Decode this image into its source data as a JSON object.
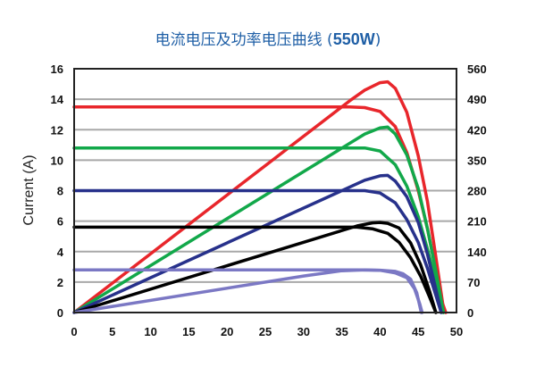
{
  "chart_data": {
    "type": "line",
    "title_main": "电流电压及功率电压曲线 (",
    "title_bold": "550W",
    "title_close": ")",
    "ylabel": "Current (A)",
    "xlim": [
      0,
      50
    ],
    "ylim_left": [
      0,
      16
    ],
    "ylim_right": [
      0,
      560
    ],
    "x_ticks": [
      "0",
      "5",
      "10",
      "15",
      "20",
      "25",
      "30",
      "35",
      "40",
      "45",
      "50"
    ],
    "y_left_ticks": [
      "0",
      "2",
      "4",
      "6",
      "8",
      "10",
      "12",
      "14",
      "16"
    ],
    "y_right_ticks": [
      "0",
      "70",
      "140",
      "210",
      "280",
      "350",
      "420",
      "490",
      "560"
    ],
    "grid": "horizontal",
    "series": [
      {
        "color": "#e8262b",
        "iv": [
          [
            0,
            13.5
          ],
          [
            36,
            13.5
          ],
          [
            38,
            13.45
          ],
          [
            40,
            13.2
          ],
          [
            42,
            12.2
          ],
          [
            43.5,
            10.5
          ],
          [
            45,
            8.0
          ],
          [
            46.2,
            5.5
          ],
          [
            47.2,
            3.0
          ],
          [
            48.3,
            0.3
          ],
          [
            48.6,
            0
          ]
        ],
        "pv": [
          [
            0,
            0
          ],
          [
            36,
            486
          ],
          [
            38,
            511
          ],
          [
            40,
            528
          ],
          [
            41,
            530
          ],
          [
            42,
            515
          ],
          [
            43.5,
            460
          ],
          [
            45,
            360
          ],
          [
            46.2,
            255
          ],
          [
            47.2,
            140
          ],
          [
            48.2,
            20
          ],
          [
            48.6,
            0
          ]
        ]
      },
      {
        "color": "#12a84a",
        "iv": [
          [
            0,
            10.8
          ],
          [
            38,
            10.8
          ],
          [
            40,
            10.6
          ],
          [
            42,
            9.7
          ],
          [
            43.5,
            8.3
          ],
          [
            45,
            6.3
          ],
          [
            46.3,
            4.0
          ],
          [
            47.3,
            2.0
          ],
          [
            48.3,
            0
          ]
        ],
        "pv": [
          [
            0,
            0
          ],
          [
            38,
            410
          ],
          [
            40,
            424
          ],
          [
            41,
            426
          ],
          [
            42,
            410
          ],
          [
            43.5,
            362
          ],
          [
            45,
            285
          ],
          [
            46.3,
            185
          ],
          [
            47.3,
            95
          ],
          [
            48.3,
            0
          ]
        ]
      },
      {
        "color": "#27318b",
        "iv": [
          [
            0,
            8.0
          ],
          [
            38,
            8.0
          ],
          [
            40,
            7.85
          ],
          [
            42,
            7.2
          ],
          [
            43.5,
            6.1
          ],
          [
            45,
            4.6
          ],
          [
            46.2,
            2.9
          ],
          [
            47.2,
            1.3
          ],
          [
            48,
            0
          ]
        ],
        "pv": [
          [
            0,
            0
          ],
          [
            38,
            304
          ],
          [
            40,
            314
          ],
          [
            41,
            315
          ],
          [
            42,
            302
          ],
          [
            43.5,
            266
          ],
          [
            45,
            207
          ],
          [
            46.2,
            134
          ],
          [
            47.2,
            61
          ],
          [
            48,
            0
          ]
        ]
      },
      {
        "color": "#000000",
        "iv": [
          [
            0,
            5.6
          ],
          [
            37,
            5.6
          ],
          [
            39,
            5.5
          ],
          [
            41,
            5.2
          ],
          [
            42.5,
            4.6
          ],
          [
            44,
            3.6
          ],
          [
            45.3,
            2.4
          ],
          [
            46.5,
            1.0
          ],
          [
            47.3,
            0
          ]
        ],
        "pv": [
          [
            0,
            0
          ],
          [
            37,
            199
          ],
          [
            39,
            206
          ],
          [
            40,
            207
          ],
          [
            41,
            205
          ],
          [
            42.5,
            194
          ],
          [
            44,
            160
          ],
          [
            45.3,
            110
          ],
          [
            46.5,
            48
          ],
          [
            47.3,
            0
          ]
        ]
      },
      {
        "color": "#7b78c4",
        "iv": [
          [
            0,
            2.8
          ],
          [
            37,
            2.8
          ],
          [
            40,
            2.78
          ],
          [
            42,
            2.7
          ],
          [
            43,
            2.55
          ],
          [
            44,
            2.2
          ],
          [
            44.8,
            1.3
          ],
          [
            45.3,
            0.2
          ],
          [
            45.4,
            0
          ]
        ],
        "pv": [
          [
            0,
            0
          ],
          [
            30,
            84
          ],
          [
            35,
            96
          ],
          [
            38,
            98
          ],
          [
            40,
            97
          ],
          [
            42,
            91
          ],
          [
            43.5,
            80
          ],
          [
            44.5,
            55
          ],
          [
            45.2,
            20
          ],
          [
            45.5,
            0
          ]
        ]
      }
    ]
  }
}
